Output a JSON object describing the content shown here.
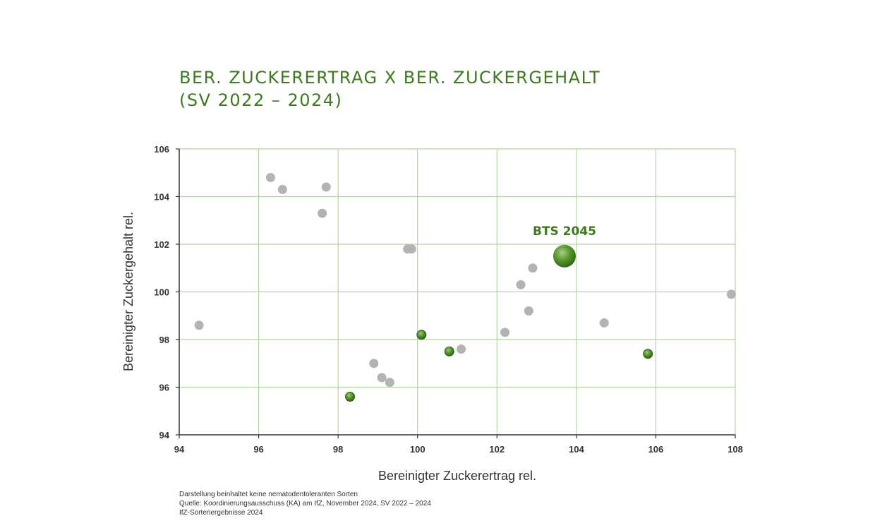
{
  "title": {
    "line1": "BER. ZUCKERERTRAG X BER. ZUCKERGEHALT",
    "line2": "(SV 2022 – 2024)"
  },
  "colors": {
    "title": "#3d7a1f",
    "grid": "#b5d3a2",
    "axis": "#333333",
    "grey_point": "#b3b3b3",
    "green_point": "#4c8a2a",
    "highlight_label": "#3d7a1f"
  },
  "chart_data": {
    "type": "scatter",
    "xlabel": "Bereinigter Zuckerertrag rel.",
    "ylabel": "Bereinigter Zuckergehalt rel.",
    "xlim": [
      94,
      108
    ],
    "ylim": [
      94,
      106
    ],
    "xticks": [
      "94",
      "96",
      "98",
      "100",
      "102",
      "104",
      "106",
      "108"
    ],
    "yticks": [
      "94",
      "96",
      "98",
      "100",
      "102",
      "104",
      "106"
    ],
    "grid": true,
    "series": [
      {
        "style": "grey",
        "points": [
          {
            "x": 94.5,
            "y": 98.6
          },
          {
            "x": 96.3,
            "y": 104.8
          },
          {
            "x": 96.6,
            "y": 104.3
          },
          {
            "x": 97.7,
            "y": 104.4
          },
          {
            "x": 97.6,
            "y": 103.3
          },
          {
            "x": 99.75,
            "y": 101.8
          },
          {
            "x": 99.85,
            "y": 101.8
          },
          {
            "x": 98.9,
            "y": 97.0
          },
          {
            "x": 99.1,
            "y": 96.4
          },
          {
            "x": 99.3,
            "y": 96.2
          },
          {
            "x": 101.1,
            "y": 97.6
          },
          {
            "x": 102.2,
            "y": 98.3
          },
          {
            "x": 102.6,
            "y": 100.3
          },
          {
            "x": 102.9,
            "y": 101.0
          },
          {
            "x": 102.8,
            "y": 99.2
          },
          {
            "x": 104.7,
            "y": 98.7
          },
          {
            "x": 107.9,
            "y": 99.9
          }
        ]
      },
      {
        "style": "green",
        "points": [
          {
            "x": 98.3,
            "y": 95.6
          },
          {
            "x": 100.1,
            "y": 98.2
          },
          {
            "x": 100.8,
            "y": 97.5
          },
          {
            "x": 105.8,
            "y": 97.4
          }
        ]
      },
      {
        "style": "highlight",
        "name": "BTS 2045",
        "points": [
          {
            "x": 103.7,
            "y": 101.5
          }
        ]
      }
    ]
  },
  "footnotes": [
    "Darstellung beinhaltet keine nematodentoleranten Sorten",
    "Quelle: Koordinierungsausschuss (KA) am IfZ, November 2024, SV 2022 – 2024",
    "IfZ-Sortenergebnisse 2024"
  ]
}
